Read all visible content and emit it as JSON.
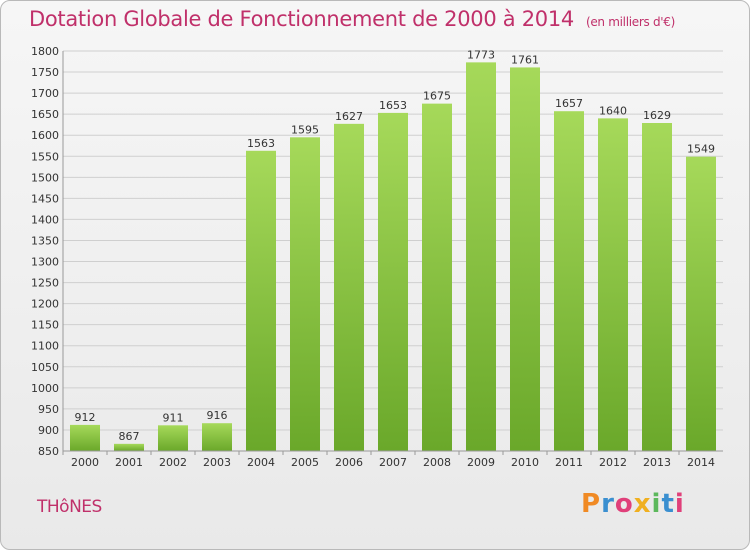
{
  "title": "Dotation Globale de Fonctionnement de 2000 à 2014",
  "unit_note": "(en milliers d'€)",
  "commune": "THôNES",
  "logo": {
    "letters": [
      "P",
      "r",
      "o",
      "x",
      "i",
      "t",
      "i"
    ],
    "colors": [
      "#f08a24",
      "#3a8fd0",
      "#e0407a",
      "#f0b020",
      "#5cb85c",
      "#3a8fd0",
      "#e0407a"
    ]
  },
  "colors": {
    "title": "#c0306a",
    "bar_top": "#a6d95a",
    "bar_bottom": "#6aa82a",
    "grid": "#cfcfcf"
  },
  "chart_data": {
    "type": "bar",
    "categories": [
      "2000",
      "2001",
      "2002",
      "2003",
      "2004",
      "2005",
      "2006",
      "2007",
      "2008",
      "2009",
      "2010",
      "2011",
      "2012",
      "2013",
      "2014"
    ],
    "values": [
      912,
      867,
      911,
      916,
      1563,
      1595,
      1627,
      1653,
      1675,
      1773,
      1761,
      1657,
      1640,
      1629,
      1549
    ],
    "ylim": [
      850,
      1800
    ],
    "yticks": [
      850,
      900,
      950,
      1000,
      1050,
      1100,
      1150,
      1200,
      1250,
      1300,
      1350,
      1400,
      1450,
      1500,
      1550,
      1600,
      1650,
      1700,
      1750,
      1800
    ],
    "grid": true,
    "xlabel": "",
    "ylabel": ""
  }
}
